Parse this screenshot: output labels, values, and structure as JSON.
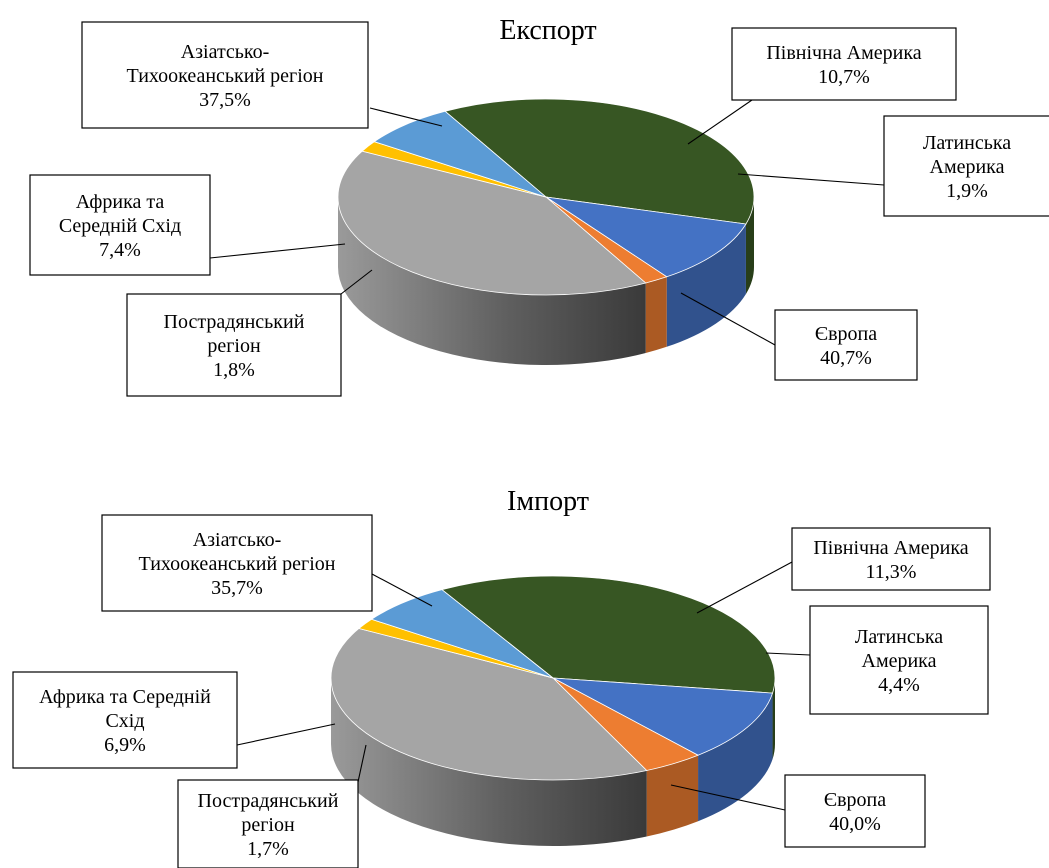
{
  "colors": {
    "Азіатсько-Тихоокеанський регіон": "#375623",
    "Північна Америка": "#4472C4",
    "Латинська Америка": "#ED7D31",
    "Європа": "#A5A5A5",
    "Пострадянський регіон": "#FFC000",
    "Африка та Середній Схід": "#5B9BD5"
  },
  "chart_data": [
    {
      "type": "pie",
      "style": "3d",
      "title": "Експорт",
      "slices": [
        {
          "name": "Азіатсько-Тихоокеанський регіон",
          "value": 37.5,
          "label_lines": [
            "Азіатсько-",
            "Тихоокеанський регіон",
            "37,5%"
          ]
        },
        {
          "name": "Північна Америка",
          "value": 10.7,
          "label_lines": [
            "Північна Америка",
            "10,7%"
          ]
        },
        {
          "name": "Латинська Америка",
          "value": 1.9,
          "label_lines": [
            "Латинська",
            "Америка",
            "1,9%"
          ]
        },
        {
          "name": "Європа",
          "value": 40.7,
          "label_lines": [
            "Європа",
            "40,7%"
          ]
        },
        {
          "name": "Пострадянський регіон",
          "value": 1.8,
          "label_lines": [
            "Пострадянський",
            "регіон",
            "1,8%"
          ]
        },
        {
          "name": "Африка та Середній Схід",
          "value": 7.4,
          "label_lines": [
            "Африка та",
            "Середній Схід",
            "7,4%"
          ]
        }
      ]
    },
    {
      "type": "pie",
      "style": "3d",
      "title": "Імпорт",
      "slices": [
        {
          "name": "Азіатсько-Тихоокеанський регіон",
          "value": 35.7,
          "label_lines": [
            "Азіатсько-",
            "Тихоокеанський регіон",
            "35,7%"
          ]
        },
        {
          "name": "Північна Америка",
          "value": 11.3,
          "label_lines": [
            "Північна Америка",
            "11,3%"
          ]
        },
        {
          "name": "Латинська Америка",
          "value": 4.4,
          "label_lines": [
            "Латинська",
            "Америка",
            "4,4%"
          ]
        },
        {
          "name": "Європа",
          "value": 40.0,
          "label_lines": [
            "Європа",
            "40,0%"
          ]
        },
        {
          "name": "Пострадянський регіон",
          "value": 1.7,
          "label_lines": [
            "Пострадянський",
            "регіон",
            "1,7%"
          ]
        },
        {
          "name": "Африка та Середній Схід",
          "value": 6.9,
          "label_lines": [
            "Африка та Середній",
            "Схід",
            "6,9%"
          ]
        }
      ]
    }
  ]
}
